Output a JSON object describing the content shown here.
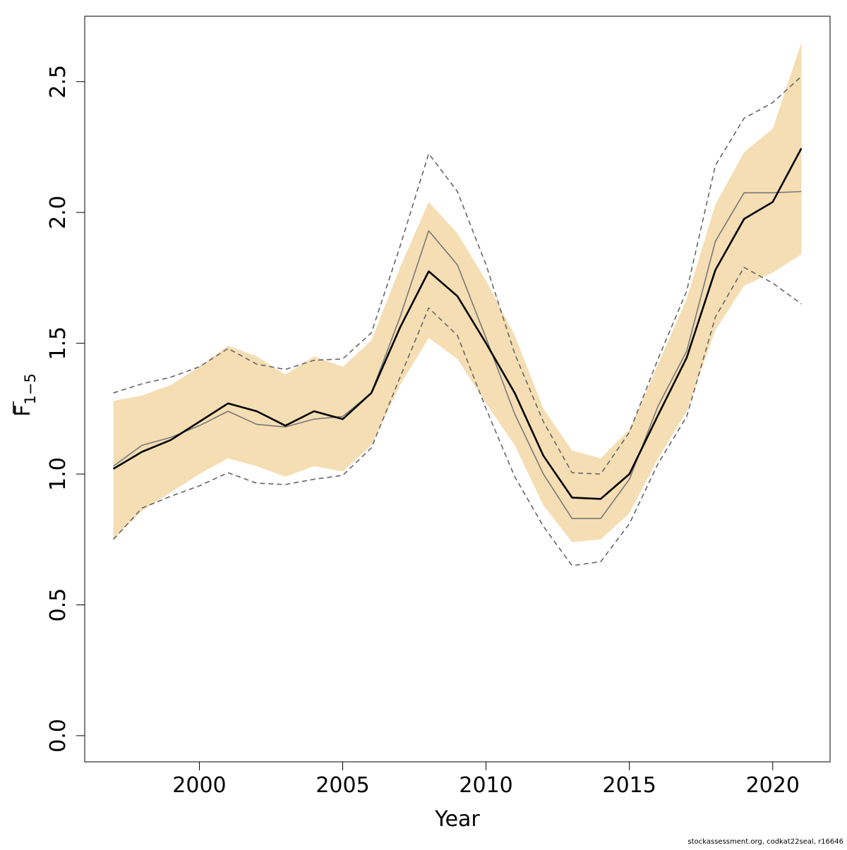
{
  "chart_data": {
    "type": "line",
    "xlabel": "Year",
    "ylabel_main": "F",
    "ylabel_sub": "1−5",
    "xlim": [
      1996,
      2022
    ],
    "ylim": [
      -0.1,
      2.75
    ],
    "xticks": [
      2000,
      2005,
      2010,
      2015,
      2020
    ],
    "yticks": [
      0.0,
      0.5,
      1.0,
      1.5,
      2.0,
      2.5
    ],
    "ytick_labels": [
      "0.0",
      "0.5",
      "1.0",
      "1.5",
      "2.0",
      "2.5"
    ],
    "grid": false,
    "legend": "none",
    "x": [
      1997,
      1998,
      1999,
      2000,
      2001,
      2002,
      2003,
      2004,
      2005,
      2006,
      2007,
      2008,
      2009,
      2010,
      2011,
      2012,
      2013,
      2014,
      2015,
      2016,
      2017,
      2018,
      2019,
      2020,
      2021
    ],
    "band": {
      "color": "#F5DEB3",
      "lower": [
        0.75,
        0.86,
        0.93,
        1.0,
        1.06,
        1.03,
        0.99,
        1.03,
        1.01,
        1.11,
        1.34,
        1.52,
        1.44,
        1.27,
        1.11,
        0.88,
        0.74,
        0.75,
        0.85,
        1.06,
        1.24,
        1.55,
        1.72,
        1.77,
        1.84
      ],
      "upper": [
        1.28,
        1.3,
        1.34,
        1.41,
        1.49,
        1.45,
        1.38,
        1.45,
        1.41,
        1.51,
        1.79,
        2.04,
        1.92,
        1.74,
        1.53,
        1.25,
        1.09,
        1.06,
        1.17,
        1.42,
        1.67,
        2.03,
        2.23,
        2.32,
        2.65
      ]
    },
    "series": [
      {
        "style": "solid-thick",
        "color": "#000000",
        "values": [
          1.02,
          1.085,
          1.13,
          1.2,
          1.27,
          1.24,
          1.185,
          1.24,
          1.21,
          1.31,
          1.56,
          1.775,
          1.68,
          1.5,
          1.31,
          1.07,
          0.91,
          0.905,
          1.0,
          1.225,
          1.445,
          1.78,
          1.975,
          2.04,
          2.245
        ]
      },
      {
        "style": "solid-thin",
        "color": "#777777",
        "values": [
          1.03,
          1.11,
          1.14,
          1.185,
          1.24,
          1.19,
          1.18,
          1.21,
          1.22,
          1.31,
          1.6,
          1.93,
          1.8,
          1.52,
          1.23,
          1.0,
          0.83,
          0.83,
          0.98,
          1.26,
          1.47,
          1.89,
          2.075,
          2.075,
          2.08
        ]
      },
      {
        "style": "dashed",
        "color": "#666666",
        "values": [
          1.31,
          1.345,
          1.37,
          1.41,
          1.48,
          1.42,
          1.4,
          1.435,
          1.44,
          1.54,
          1.87,
          2.225,
          2.08,
          1.8,
          1.46,
          1.2,
          1.005,
          1.0,
          1.16,
          1.44,
          1.7,
          2.18,
          2.36,
          2.42,
          2.52
        ]
      },
      {
        "style": "dashed",
        "color": "#666666",
        "values": [
          0.75,
          0.87,
          0.915,
          0.955,
          1.005,
          0.965,
          0.96,
          0.98,
          0.995,
          1.1,
          1.37,
          1.635,
          1.53,
          1.25,
          0.99,
          0.8,
          0.65,
          0.665,
          0.81,
          1.04,
          1.22,
          1.6,
          1.79,
          1.73,
          1.65
        ]
      }
    ],
    "credit": "stockassessment.org, codkat22seal, r16646"
  }
}
